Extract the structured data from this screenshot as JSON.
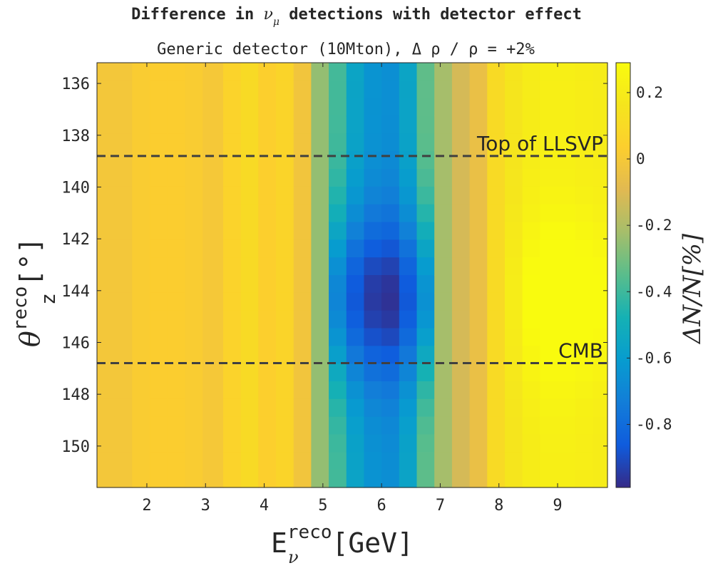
{
  "chart_data": {
    "type": "heatmap",
    "title_parts": [
      "Difference in ",
      "ν",
      "μ",
      " detections with detector effect"
    ],
    "subtitle": "Generic detector (10Mton), Δ ρ / ρ = +2%",
    "xlabel_main": "E",
    "xlabel_sup": "reco",
    "xlabel_sub": "ν",
    "xlabel_unit": "[GeV]",
    "ylabel_main": "θ",
    "ylabel_sup": "reco",
    "ylabel_sub": "z",
    "ylabel_unit": "[°]",
    "colorbar_label": "ΔN/N[%]",
    "x_range": [
      1.15,
      9.85
    ],
    "y_range": [
      135.2,
      151.6
    ],
    "y_reversed": true,
    "x_ticks": [
      2,
      3,
      4,
      5,
      6,
      7,
      8,
      9
    ],
    "y_ticks": [
      136,
      138,
      140,
      142,
      144,
      146,
      148,
      150
    ],
    "color_range": [
      -0.99,
      0.29
    ],
    "colorbar_ticks": [
      "0.2",
      "0",
      "-0.2",
      "-0.4",
      "-0.6",
      "-0.8"
    ],
    "colorbar_tick_values": [
      0.2,
      0,
      -0.2,
      -0.4,
      -0.6,
      -0.8
    ],
    "colormap": "parula",
    "x_edges": [
      1.15,
      1.45,
      1.75,
      2.05,
      2.35,
      2.65,
      2.95,
      3.3,
      3.6,
      3.9,
      4.2,
      4.5,
      4.8,
      5.1,
      5.4,
      5.7,
      6.0,
      6.3,
      6.6,
      6.9,
      7.2,
      7.5,
      7.8,
      8.1,
      8.4,
      8.7,
      9.0,
      9.3,
      9.6,
      9.85
    ],
    "column_base_values": [
      -0.01,
      -0.01,
      0.02,
      0.03,
      0.03,
      0.02,
      0.0,
      0.06,
      0.1,
      0.04,
      0.07,
      -0.02,
      -0.25,
      -0.45,
      -0.62,
      -0.7,
      -0.72,
      -0.62,
      -0.4,
      -0.22,
      -0.12,
      -0.05,
      0.1,
      0.16,
      0.2,
      0.22,
      0.22,
      0.21,
      0.2
    ],
    "center_emphasis": {
      "peak_angle": 144.3,
      "width_deg": 3.2,
      "mid_band_extra": -0.25,
      "far_band_extra": 0.12
    },
    "rows": 24,
    "reference_lines": [
      {
        "y": 138.8,
        "label": "Top of LLSVP",
        "style": "dashed"
      },
      {
        "y": 146.8,
        "label": "CMB",
        "style": "dashed"
      }
    ]
  }
}
